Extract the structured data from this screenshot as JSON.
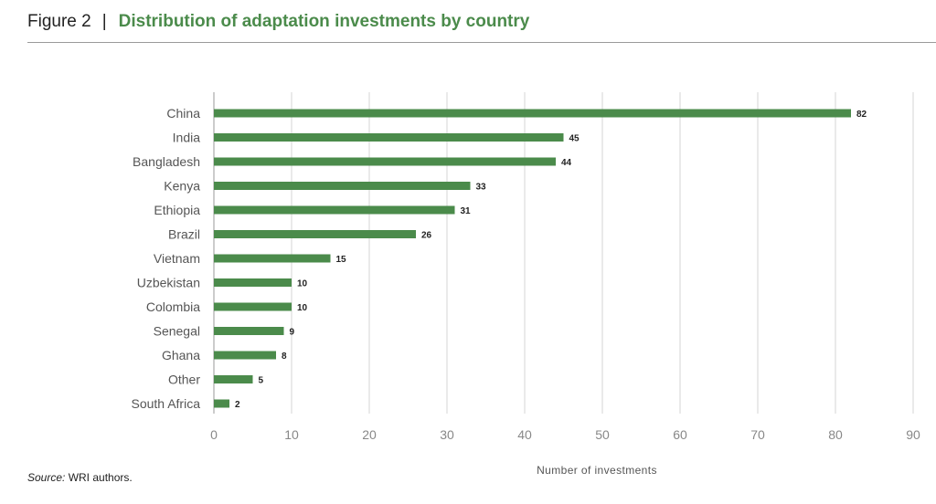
{
  "header": {
    "figure_label": "Figure 2",
    "separator": "|",
    "title": "Distribution of adaptation investments by country"
  },
  "source": {
    "label": "Source:",
    "text": " WRI authors."
  },
  "colors": {
    "bar": "#4b8b4b",
    "title": "#4b8b4b",
    "grid": "#d4d4d4",
    "axis": "#999999"
  },
  "chart_data": {
    "type": "bar",
    "orientation": "horizontal",
    "categories": [
      "China",
      "India",
      "Bangladesh",
      "Kenya",
      "Ethiopia",
      "Brazil",
      "Vietnam",
      "Uzbekistan",
      "Colombia",
      "Senegal",
      "Ghana",
      "Other",
      "South Africa"
    ],
    "values": [
      82,
      45,
      44,
      33,
      31,
      26,
      15,
      10,
      10,
      9,
      8,
      5,
      2
    ],
    "data_labels": [
      "82",
      "45",
      "44",
      "33",
      "31",
      "26",
      "15",
      "10",
      "10",
      "9",
      "8",
      "5",
      "2"
    ],
    "xlabel": "Number of investments",
    "ylabel": "",
    "xlim": [
      0,
      90
    ],
    "x_ticks": [
      0,
      10,
      20,
      30,
      40,
      50,
      60,
      70,
      80,
      90
    ],
    "x_tick_labels": [
      "0",
      "10",
      "20",
      "30",
      "40",
      "50",
      "60",
      "70",
      "80",
      "90"
    ],
    "grid": "vertical",
    "legend": "none"
  }
}
